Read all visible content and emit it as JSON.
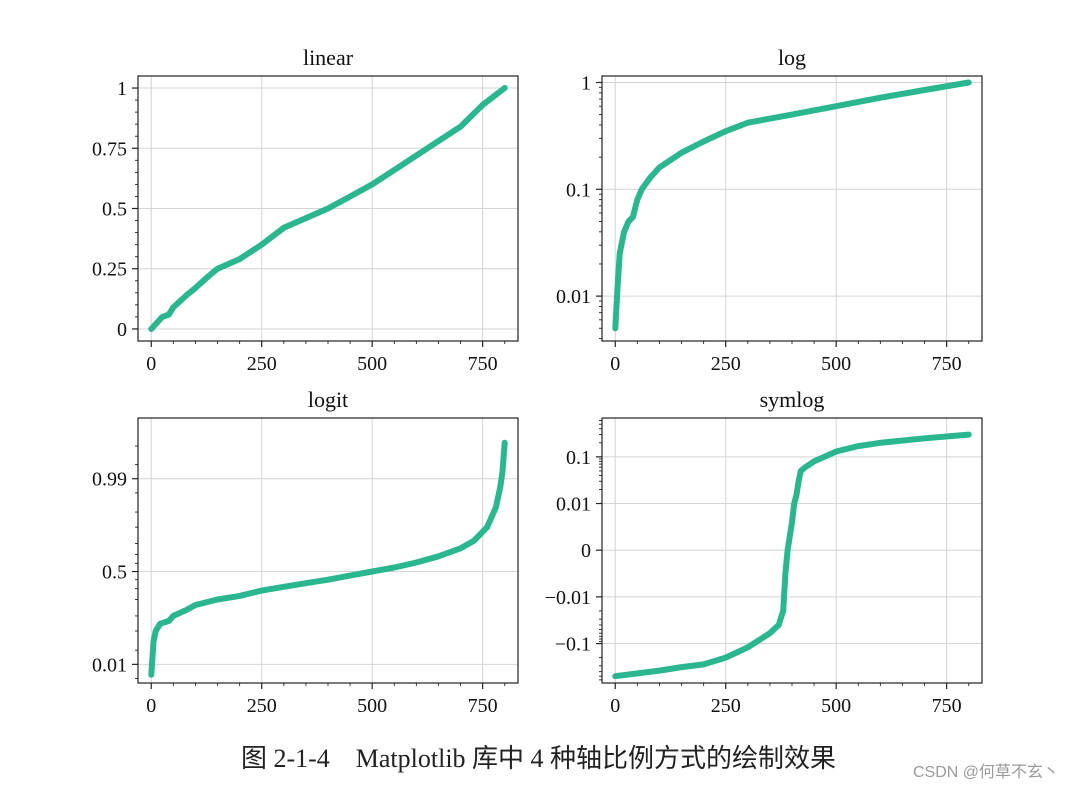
{
  "caption": "图 2-1-4　Matplotlib 库中 4 种轴比例方式的绘制效果",
  "watermark": "CSDN @何草不玄丶",
  "line_color": "#2ab78f",
  "chart_data": [
    {
      "type": "line",
      "title": "linear",
      "yscale": "linear",
      "xlim": [
        -30,
        830
      ],
      "xticks": [
        0,
        250,
        500,
        750
      ],
      "xtick_labels": [
        "0",
        "250",
        "500",
        "750"
      ],
      "ylim": [
        -0.05,
        1.05
      ],
      "yticks": [
        0,
        0.25,
        0.5,
        0.75,
        1
      ],
      "ytick_labels": [
        "0",
        "0.25",
        "0.5",
        "0.75",
        "1"
      ],
      "grid": true,
      "x": [
        0,
        10,
        25,
        40,
        50,
        80,
        100,
        130,
        150,
        200,
        250,
        300,
        350,
        400,
        450,
        500,
        550,
        600,
        650,
        700,
        750,
        800
      ],
      "y": [
        0.0,
        0.02,
        0.05,
        0.06,
        0.09,
        0.14,
        0.17,
        0.22,
        0.25,
        0.29,
        0.35,
        0.42,
        0.46,
        0.5,
        0.55,
        0.6,
        0.66,
        0.72,
        0.78,
        0.84,
        0.93,
        1.0
      ]
    },
    {
      "type": "line",
      "title": "log",
      "yscale": "log",
      "xlim": [
        -30,
        830
      ],
      "xticks": [
        0,
        250,
        500,
        750
      ],
      "xtick_labels": [
        "0",
        "250",
        "500",
        "750"
      ],
      "ylim": [
        0.0038,
        1.15
      ],
      "yticks": [
        0.01,
        0.1,
        1
      ],
      "ytick_labels": [
        "0.01",
        "0.1",
        "1"
      ],
      "grid": true,
      "x": [
        0,
        5,
        10,
        20,
        30,
        40,
        50,
        60,
        80,
        100,
        150,
        200,
        250,
        300,
        400,
        500,
        600,
        700,
        800
      ],
      "y": [
        0.005,
        0.012,
        0.025,
        0.04,
        0.05,
        0.055,
        0.08,
        0.1,
        0.13,
        0.16,
        0.22,
        0.28,
        0.35,
        0.42,
        0.5,
        0.6,
        0.72,
        0.85,
        1.0
      ]
    },
    {
      "type": "line",
      "title": "logit",
      "yscale": "logit",
      "xlim": [
        -30,
        830
      ],
      "xticks": [
        0,
        250,
        500,
        750
      ],
      "xtick_labels": [
        "0",
        "250",
        "500",
        "750"
      ],
      "ylim": [
        0.004,
        0.9995
      ],
      "yticks": [
        0.01,
        0.5,
        0.99
      ],
      "ytick_labels": [
        "0.01",
        "0.5",
        "0.99"
      ],
      "grid": true,
      "x": [
        0,
        5,
        10,
        20,
        40,
        50,
        80,
        100,
        150,
        200,
        250,
        300,
        350,
        400,
        450,
        500,
        550,
        600,
        650,
        700,
        730,
        760,
        780,
        790,
        795,
        800
      ],
      "y": [
        0.006,
        0.03,
        0.05,
        0.07,
        0.08,
        0.1,
        0.13,
        0.16,
        0.2,
        0.23,
        0.28,
        0.32,
        0.36,
        0.4,
        0.45,
        0.5,
        0.55,
        0.61,
        0.68,
        0.76,
        0.82,
        0.9,
        0.96,
        0.985,
        0.993,
        0.9983
      ]
    },
    {
      "type": "line",
      "title": "symlog",
      "yscale": "symlog",
      "xlim": [
        -30,
        830
      ],
      "xticks": [
        0,
        250,
        500,
        750
      ],
      "xtick_labels": [
        "0",
        "250",
        "500",
        "750"
      ],
      "ylim": [
        -0.7,
        0.68
      ],
      "yticks": [
        -0.1,
        -0.01,
        0,
        0.01,
        0.1
      ],
      "ytick_labels": [
        "−0.1",
        "−0.01",
        "0",
        "0.01",
        "0.1"
      ],
      "grid": true,
      "x": [
        0,
        100,
        150,
        200,
        250,
        300,
        350,
        370,
        380,
        385,
        390,
        395,
        400,
        405,
        410,
        415,
        420,
        430,
        450,
        500,
        550,
        600,
        700,
        800
      ],
      "y": [
        -0.5,
        -0.38,
        -0.32,
        -0.28,
        -0.2,
        -0.12,
        -0.06,
        -0.04,
        -0.02,
        -0.005,
        0.0,
        0.003,
        0.006,
        0.01,
        0.015,
        0.03,
        0.05,
        0.06,
        0.08,
        0.13,
        0.17,
        0.2,
        0.25,
        0.3
      ]
    }
  ]
}
